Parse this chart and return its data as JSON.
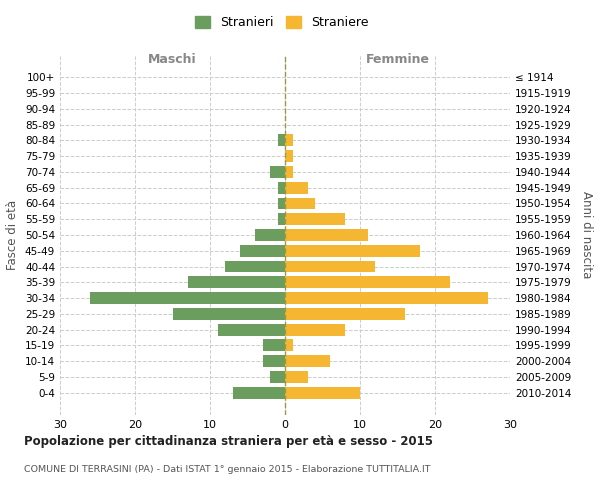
{
  "age_groups": [
    "100+",
    "95-99",
    "90-94",
    "85-89",
    "80-84",
    "75-79",
    "70-74",
    "65-69",
    "60-64",
    "55-59",
    "50-54",
    "45-49",
    "40-44",
    "35-39",
    "30-34",
    "25-29",
    "20-24",
    "15-19",
    "10-14",
    "5-9",
    "0-4"
  ],
  "birth_years": [
    "≤ 1914",
    "1915-1919",
    "1920-1924",
    "1925-1929",
    "1930-1934",
    "1935-1939",
    "1940-1944",
    "1945-1949",
    "1950-1954",
    "1955-1959",
    "1960-1964",
    "1965-1969",
    "1970-1974",
    "1975-1979",
    "1980-1984",
    "1985-1989",
    "1990-1994",
    "1995-1999",
    "2000-2004",
    "2005-2009",
    "2010-2014"
  ],
  "maschi": [
    0,
    0,
    0,
    0,
    1,
    0,
    2,
    1,
    1,
    1,
    4,
    6,
    8,
    13,
    26,
    15,
    9,
    3,
    3,
    2,
    7
  ],
  "femmine": [
    0,
    0,
    0,
    0,
    1,
    1,
    1,
    3,
    4,
    8,
    11,
    18,
    12,
    22,
    27,
    16,
    8,
    1,
    6,
    3,
    10
  ],
  "color_maschi": "#6b9e5e",
  "color_femmine": "#f5b731",
  "title": "Popolazione per cittadinanza straniera per età e sesso - 2015",
  "subtitle": "COMUNE DI TERRASINI (PA) - Dati ISTAT 1° gennaio 2015 - Elaborazione TUTTITALIA.IT",
  "ylabel_left": "Fasce di età",
  "ylabel_right": "Anni di nascita",
  "label_maschi": "Maschi",
  "label_femmine": "Femmine",
  "legend_maschi": "Stranieri",
  "legend_femmine": "Straniere",
  "xlim": 30,
  "background_color": "#ffffff",
  "grid_color": "#cccccc"
}
